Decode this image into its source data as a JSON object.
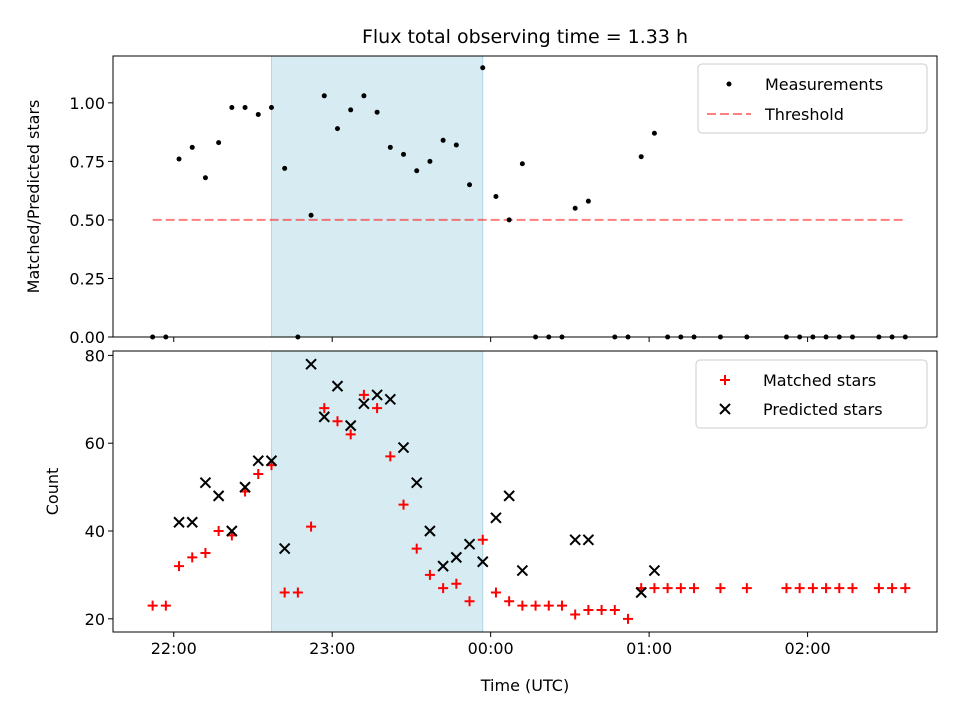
{
  "colors": {
    "shade": "#add8e6",
    "measurements": "#000000",
    "threshold": "#ff0000",
    "matched": "#ff0000",
    "predicted": "#000000"
  },
  "chart_data": [
    {
      "type": "scatter",
      "title": "Flux total observing time = 1.33 h",
      "xlabel": "",
      "ylabel": "Matched/Predicted stars",
      "xlim": [
        "21:37",
        "02:49"
      ],
      "ylim": [
        0,
        1.2
      ],
      "yticks": [
        "0.00",
        "0.25",
        "0.50",
        "0.75",
        "1.00"
      ],
      "shaded_span": [
        "22:37",
        "23:57"
      ],
      "legend_position": "upper right",
      "series": [
        {
          "name": "Measurements",
          "marker": "dot",
          "points": [
            [
              "21:52",
              0.0
            ],
            [
              "21:57",
              0.0
            ],
            [
              "22:02",
              0.76
            ],
            [
              "22:07",
              0.81
            ],
            [
              "22:12",
              0.68
            ],
            [
              "22:17",
              0.83
            ],
            [
              "22:22",
              0.98
            ],
            [
              "22:27",
              0.98
            ],
            [
              "22:32",
              0.95
            ],
            [
              "22:37",
              0.98
            ],
            [
              "22:42",
              0.72
            ],
            [
              "22:47",
              0.0
            ],
            [
              "22:52",
              0.52
            ],
            [
              "22:57",
              1.03
            ],
            [
              "23:02",
              0.89
            ],
            [
              "23:07",
              0.97
            ],
            [
              "23:12",
              1.03
            ],
            [
              "23:17",
              0.96
            ],
            [
              "23:22",
              0.81
            ],
            [
              "23:27",
              0.78
            ],
            [
              "23:32",
              0.71
            ],
            [
              "23:37",
              0.75
            ],
            [
              "23:42",
              0.84
            ],
            [
              "23:47",
              0.82
            ],
            [
              "23:52",
              0.65
            ],
            [
              "23:57",
              1.15
            ],
            [
              "00:02",
              0.6
            ],
            [
              "00:07",
              0.5
            ],
            [
              "00:12",
              0.74
            ],
            [
              "00:17",
              0.0
            ],
            [
              "00:22",
              0.0
            ],
            [
              "00:27",
              0.0
            ],
            [
              "00:32",
              0.55
            ],
            [
              "00:37",
              0.58
            ],
            [
              "00:47",
              0.0
            ],
            [
              "00:52",
              0.0
            ],
            [
              "00:57",
              0.77
            ],
            [
              "01:02",
              0.87
            ],
            [
              "01:07",
              0.0
            ],
            [
              "01:12",
              0.0
            ],
            [
              "01:17",
              0.0
            ],
            [
              "01:27",
              0.0
            ],
            [
              "01:37",
              0.0
            ],
            [
              "01:52",
              0.0
            ],
            [
              "01:57",
              0.0
            ],
            [
              "02:02",
              0.0
            ],
            [
              "02:07",
              0.0
            ],
            [
              "02:12",
              0.0
            ],
            [
              "02:17",
              0.0
            ],
            [
              "02:27",
              0.0
            ],
            [
              "02:32",
              0.0
            ],
            [
              "02:37",
              0.0
            ]
          ]
        },
        {
          "name": "Threshold",
          "marker": "dashed-line",
          "x": [
            "21:52",
            "02:37"
          ],
          "y": 0.5
        }
      ]
    },
    {
      "type": "scatter",
      "title": "",
      "xlabel": "Time (UTC)",
      "ylabel": "Count",
      "xlim": [
        "21:37",
        "02:49"
      ],
      "ylim": [
        17,
        81
      ],
      "yticks": [
        "20",
        "40",
        "60",
        "80"
      ],
      "xticks": [
        "22:00",
        "23:00",
        "00:00",
        "01:00",
        "02:00"
      ],
      "shaded_span": [
        "22:37",
        "23:57"
      ],
      "legend_position": "upper right",
      "series": [
        {
          "name": "Matched stars",
          "marker": "plus",
          "points": [
            [
              "21:52",
              23
            ],
            [
              "21:57",
              23
            ],
            [
              "22:02",
              32
            ],
            [
              "22:07",
              34
            ],
            [
              "22:12",
              35
            ],
            [
              "22:17",
              40
            ],
            [
              "22:22",
              39
            ],
            [
              "22:27",
              49
            ],
            [
              "22:32",
              53
            ],
            [
              "22:37",
              55
            ],
            [
              "22:42",
              26
            ],
            [
              "22:47",
              26
            ],
            [
              "22:52",
              41
            ],
            [
              "22:57",
              68
            ],
            [
              "23:02",
              65
            ],
            [
              "23:07",
              62
            ],
            [
              "23:12",
              71
            ],
            [
              "23:17",
              68
            ],
            [
              "23:22",
              57
            ],
            [
              "23:27",
              46
            ],
            [
              "23:32",
              36
            ],
            [
              "23:37",
              30
            ],
            [
              "23:42",
              27
            ],
            [
              "23:47",
              28
            ],
            [
              "23:52",
              24
            ],
            [
              "23:57",
              38
            ],
            [
              "00:02",
              26
            ],
            [
              "00:07",
              24
            ],
            [
              "00:12",
              23
            ],
            [
              "00:17",
              23
            ],
            [
              "00:22",
              23
            ],
            [
              "00:27",
              23
            ],
            [
              "00:32",
              21
            ],
            [
              "00:37",
              22
            ],
            [
              "00:42",
              22
            ],
            [
              "00:47",
              22
            ],
            [
              "00:52",
              20
            ],
            [
              "00:57",
              27
            ],
            [
              "01:02",
              27
            ],
            [
              "01:07",
              27
            ],
            [
              "01:12",
              27
            ],
            [
              "01:17",
              27
            ],
            [
              "01:27",
              27
            ],
            [
              "01:37",
              27
            ],
            [
              "01:52",
              27
            ],
            [
              "01:57",
              27
            ],
            [
              "02:02",
              27
            ],
            [
              "02:07",
              27
            ],
            [
              "02:12",
              27
            ],
            [
              "02:17",
              27
            ],
            [
              "02:27",
              27
            ],
            [
              "02:32",
              27
            ],
            [
              "02:37",
              27
            ]
          ]
        },
        {
          "name": "Predicted stars",
          "marker": "x",
          "points": [
            [
              "22:02",
              42
            ],
            [
              "22:07",
              42
            ],
            [
              "22:12",
              51
            ],
            [
              "22:17",
              48
            ],
            [
              "22:22",
              40
            ],
            [
              "22:27",
              50
            ],
            [
              "22:32",
              56
            ],
            [
              "22:37",
              56
            ],
            [
              "22:42",
              36
            ],
            [
              "22:52",
              78
            ],
            [
              "22:57",
              66
            ],
            [
              "23:02",
              73
            ],
            [
              "23:07",
              64
            ],
            [
              "23:12",
              69
            ],
            [
              "23:17",
              71
            ],
            [
              "23:22",
              70
            ],
            [
              "23:27",
              59
            ],
            [
              "23:32",
              51
            ],
            [
              "23:37",
              40
            ],
            [
              "23:42",
              32
            ],
            [
              "23:47",
              34
            ],
            [
              "23:52",
              37
            ],
            [
              "23:57",
              33
            ],
            [
              "00:02",
              43
            ],
            [
              "00:07",
              48
            ],
            [
              "00:12",
              31
            ],
            [
              "00:32",
              38
            ],
            [
              "00:37",
              38
            ],
            [
              "00:57",
              26
            ],
            [
              "01:02",
              31
            ]
          ]
        }
      ]
    }
  ]
}
